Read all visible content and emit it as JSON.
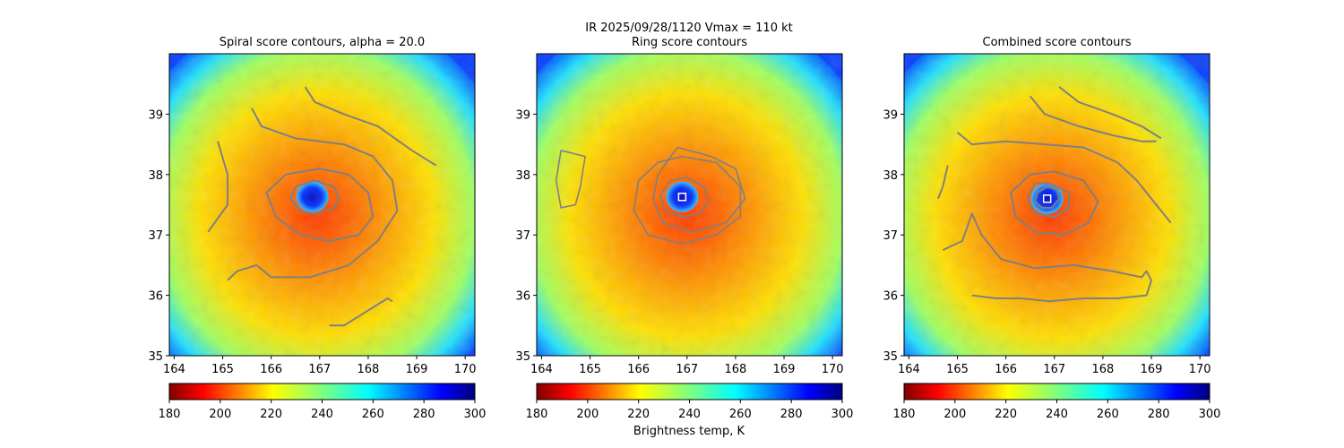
{
  "suptitle": "IR  2025/09/28/1120    Vmax = 110 kt",
  "colorbar_label": "Brightness temp, K",
  "colors": {
    "contour": "#808080",
    "center_marker": "#ffffff",
    "cmap_hot": "#800000",
    "cmap_cold": "#000080"
  },
  "chart_data": [
    {
      "type": "heatmap",
      "title": "Spiral score contours, alpha = 20.0",
      "xlim": [
        163.9,
        170.2
      ],
      "ylim": [
        35.0,
        40.0
      ],
      "xticks": [
        "164",
        "165",
        "166",
        "167",
        "168",
        "169",
        "170"
      ],
      "yticks": [
        "35",
        "36",
        "37",
        "38",
        "39"
      ],
      "eye_center": [
        166.85,
        37.63
      ],
      "eye_marker": false,
      "colorbar": {
        "range": [
          180,
          300
        ],
        "ticks": [
          "180",
          "200",
          "220",
          "240",
          "260",
          "280",
          "300"
        ],
        "cmap": "jet_r"
      },
      "contours": [
        [
          [
            167.4,
            37.6
          ],
          [
            167.3,
            37.8
          ],
          [
            166.9,
            37.9
          ],
          [
            166.5,
            37.8
          ],
          [
            166.4,
            37.6
          ],
          [
            166.6,
            37.4
          ],
          [
            166.9,
            37.35
          ],
          [
            167.3,
            37.45
          ],
          [
            167.4,
            37.6
          ]
        ],
        [
          [
            167.0,
            38.1
          ],
          [
            167.6,
            38.0
          ],
          [
            168.0,
            37.7
          ],
          [
            168.1,
            37.3
          ],
          [
            167.8,
            37.0
          ],
          [
            167.2,
            36.9
          ],
          [
            166.6,
            37.0
          ],
          [
            166.1,
            37.3
          ],
          [
            165.9,
            37.7
          ],
          [
            166.3,
            38.0
          ],
          [
            167.0,
            38.1
          ]
        ],
        [
          [
            165.6,
            39.1
          ],
          [
            165.8,
            38.8
          ],
          [
            166.5,
            38.6
          ],
          [
            167.5,
            38.5
          ],
          [
            168.1,
            38.3
          ],
          [
            168.5,
            37.9
          ],
          [
            168.6,
            37.4
          ],
          [
            168.2,
            36.9
          ],
          [
            167.6,
            36.5
          ],
          [
            166.8,
            36.3
          ],
          [
            166.0,
            36.3
          ],
          [
            165.7,
            36.5
          ],
          [
            165.3,
            36.4
          ],
          [
            165.1,
            36.25
          ]
        ],
        [
          [
            166.7,
            39.45
          ],
          [
            166.9,
            39.2
          ],
          [
            167.5,
            39.0
          ],
          [
            168.2,
            38.8
          ],
          [
            168.9,
            38.4
          ],
          [
            169.4,
            38.15
          ]
        ],
        [
          [
            164.9,
            38.55
          ],
          [
            165.1,
            38.0
          ],
          [
            165.1,
            37.5
          ],
          [
            164.7,
            37.05
          ]
        ],
        [
          [
            167.2,
            35.5
          ],
          [
            167.5,
            35.5
          ],
          [
            167.9,
            35.7
          ],
          [
            168.4,
            35.95
          ],
          [
            168.5,
            35.9
          ]
        ]
      ]
    },
    {
      "type": "heatmap",
      "title": "Ring score contours",
      "xlim": [
        163.9,
        170.2
      ],
      "ylim": [
        35.0,
        40.0
      ],
      "xticks": [
        "164",
        "165",
        "166",
        "167",
        "168",
        "169",
        "170"
      ],
      "yticks": [
        "35",
        "36",
        "37",
        "38",
        "39"
      ],
      "eye_center": [
        166.9,
        37.63
      ],
      "eye_marker": true,
      "colorbar": {
        "range": [
          180,
          300
        ],
        "ticks": [
          "180",
          "200",
          "220",
          "240",
          "260",
          "280",
          "300"
        ],
        "cmap": "jet_r"
      },
      "contours": [
        [
          [
            167.0,
            37.95
          ],
          [
            167.35,
            37.8
          ],
          [
            167.45,
            37.55
          ],
          [
            167.25,
            37.35
          ],
          [
            166.9,
            37.3
          ],
          [
            166.55,
            37.4
          ],
          [
            166.45,
            37.65
          ],
          [
            166.65,
            37.9
          ],
          [
            167.0,
            37.95
          ]
        ],
        [
          [
            166.9,
            38.3
          ],
          [
            167.6,
            38.2
          ],
          [
            168.1,
            37.8
          ],
          [
            168.1,
            37.3
          ],
          [
            167.6,
            37.0
          ],
          [
            166.9,
            36.85
          ],
          [
            166.2,
            37.0
          ],
          [
            165.9,
            37.4
          ],
          [
            166.0,
            37.9
          ],
          [
            166.4,
            38.2
          ],
          [
            166.9,
            38.3
          ]
        ],
        [
          [
            164.4,
            38.4
          ],
          [
            164.9,
            38.3
          ],
          [
            164.8,
            37.8
          ],
          [
            164.7,
            37.5
          ],
          [
            164.4,
            37.45
          ],
          [
            164.3,
            37.9
          ],
          [
            164.4,
            38.4
          ]
        ],
        [
          [
            166.8,
            38.45
          ],
          [
            167.5,
            38.3
          ],
          [
            168.0,
            38.1
          ],
          [
            168.2,
            37.6
          ],
          [
            167.8,
            37.2
          ],
          [
            167.1,
            37.05
          ],
          [
            166.5,
            37.2
          ],
          [
            166.3,
            37.6
          ],
          [
            166.4,
            38.0
          ],
          [
            166.8,
            38.45
          ]
        ]
      ]
    },
    {
      "type": "heatmap",
      "title": "Combined score contours",
      "xlim": [
        163.9,
        170.2
      ],
      "ylim": [
        35.0,
        40.0
      ],
      "xticks": [
        "164",
        "165",
        "166",
        "167",
        "168",
        "169",
        "170"
      ],
      "yticks": [
        "35",
        "36",
        "37",
        "38",
        "39"
      ],
      "eye_center": [
        166.85,
        37.6
      ],
      "eye_marker": true,
      "colorbar": {
        "range": [
          180,
          300
        ],
        "ticks": [
          "180",
          "200",
          "220",
          "240",
          "260",
          "280",
          "300"
        ],
        "cmap": "jet_r"
      },
      "contours": [
        [
          [
            167.1,
            37.6
          ],
          [
            167.05,
            37.75
          ],
          [
            166.85,
            37.8
          ],
          [
            166.65,
            37.7
          ],
          [
            166.6,
            37.55
          ],
          [
            166.75,
            37.45
          ],
          [
            166.95,
            37.45
          ],
          [
            167.1,
            37.6
          ]
        ],
        [
          [
            166.9,
            37.85
          ],
          [
            167.3,
            37.7
          ],
          [
            167.3,
            37.45
          ],
          [
            167.0,
            37.3
          ],
          [
            166.6,
            37.35
          ],
          [
            166.45,
            37.6
          ],
          [
            166.6,
            37.85
          ],
          [
            166.9,
            37.85
          ]
        ],
        [
          [
            167.0,
            38.05
          ],
          [
            167.6,
            37.9
          ],
          [
            167.9,
            37.55
          ],
          [
            167.7,
            37.2
          ],
          [
            167.2,
            37.0
          ],
          [
            166.6,
            37.05
          ],
          [
            166.2,
            37.3
          ],
          [
            166.1,
            37.7
          ],
          [
            166.5,
            38.0
          ],
          [
            167.0,
            38.05
          ]
        ],
        [
          [
            165.0,
            38.7
          ],
          [
            165.3,
            38.5
          ],
          [
            166.0,
            38.55
          ],
          [
            166.8,
            38.5
          ],
          [
            167.6,
            38.45
          ],
          [
            168.3,
            38.2
          ],
          [
            168.7,
            37.9
          ],
          [
            169.0,
            37.6
          ],
          [
            169.2,
            37.4
          ],
          [
            169.4,
            37.2
          ]
        ],
        [
          [
            164.7,
            36.75
          ],
          [
            165.1,
            36.9
          ],
          [
            165.3,
            37.35
          ],
          [
            165.5,
            37.0
          ],
          [
            165.9,
            36.6
          ],
          [
            166.6,
            36.45
          ],
          [
            167.4,
            36.5
          ],
          [
            168.2,
            36.4
          ],
          [
            168.8,
            36.3
          ],
          [
            168.9,
            36.4
          ],
          [
            169.0,
            36.25
          ],
          [
            168.9,
            36.0
          ],
          [
            168.3,
            35.95
          ],
          [
            167.6,
            35.95
          ],
          [
            166.9,
            35.9
          ],
          [
            166.3,
            35.95
          ],
          [
            165.8,
            35.95
          ],
          [
            165.3,
            36.0
          ]
        ],
        [
          [
            166.5,
            39.3
          ],
          [
            166.8,
            39.0
          ],
          [
            167.5,
            38.8
          ],
          [
            168.2,
            38.65
          ],
          [
            168.8,
            38.55
          ],
          [
            169.1,
            38.55
          ]
        ],
        [
          [
            167.1,
            39.45
          ],
          [
            167.5,
            39.2
          ],
          [
            168.2,
            39.0
          ],
          [
            168.8,
            38.8
          ],
          [
            169.2,
            38.6
          ]
        ],
        [
          [
            164.8,
            38.15
          ],
          [
            164.7,
            37.8
          ],
          [
            164.6,
            37.6
          ]
        ]
      ]
    }
  ]
}
